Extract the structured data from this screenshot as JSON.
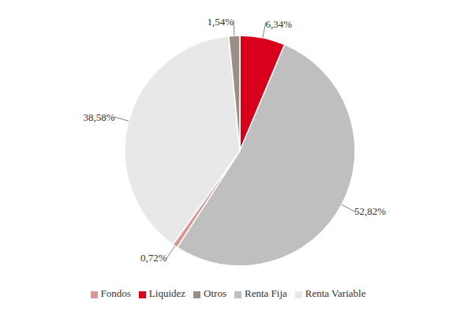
{
  "chart_data": {
    "type": "pie",
    "categories": [
      "Liquidez",
      "Renta Fija",
      "Fondos",
      "Renta Variable",
      "Otros"
    ],
    "values": [
      6.34,
      52.82,
      0.72,
      38.58,
      1.54
    ],
    "value_labels": [
      "6,34%",
      "52,82%",
      "0,72%",
      "38,58%",
      "1,54%"
    ],
    "colors": [
      "#d9001b",
      "#bfbfbf",
      "#d99694",
      "#e8e8e8",
      "#9b8e86"
    ],
    "legend": "bottom",
    "data_labels": true
  }
}
